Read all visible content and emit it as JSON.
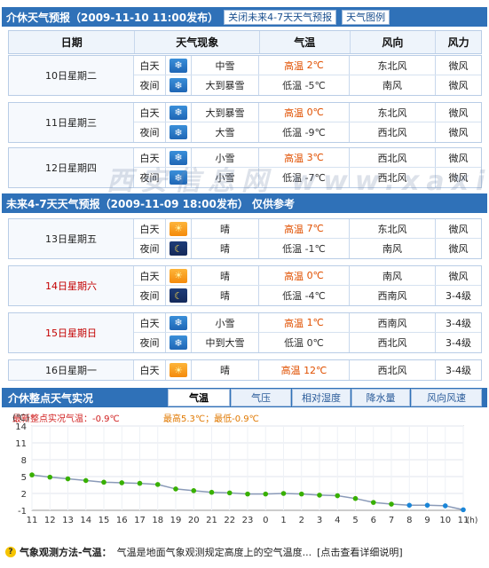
{
  "short_term": {
    "title": "介休天气预报（2009-11-10 11:00发布）",
    "btn_close": "关闭未来4-7天天气预报",
    "btn_legend": "天气图例"
  },
  "headers": {
    "date": "日期",
    "phen": "天气现象",
    "temp": "气温",
    "wind_dir": "风向",
    "wind_force": "风力"
  },
  "days_short": [
    {
      "date": "10日星期二",
      "rows": [
        {
          "period": "白天",
          "icon": "snow-icon",
          "phen": "中雪",
          "temp_label": "高温",
          "temp": "2℃",
          "wind_dir": "东北风",
          "wind_force": "微风"
        },
        {
          "period": "夜间",
          "icon": "snow-icon",
          "phen": "大到暴雪",
          "temp_label": "低温",
          "temp": "-5℃",
          "wind_dir": "南风",
          "wind_force": "微风"
        }
      ]
    },
    {
      "date": "11日星期三",
      "rows": [
        {
          "period": "白天",
          "icon": "snow-icon",
          "phen": "大到暴雪",
          "temp_label": "高温",
          "temp": "0℃",
          "wind_dir": "东北风",
          "wind_force": "微风"
        },
        {
          "period": "夜间",
          "icon": "snow-icon",
          "phen": "大雪",
          "temp_label": "低温",
          "temp": "-9℃",
          "wind_dir": "西北风",
          "wind_force": "微风"
        }
      ]
    },
    {
      "date": "12日星期四",
      "rows": [
        {
          "period": "白天",
          "icon": "snow-icon",
          "phen": "小雪",
          "temp_label": "高温",
          "temp": "3℃",
          "wind_dir": "西北风",
          "wind_force": "微风"
        },
        {
          "period": "夜间",
          "icon": "snow-icon",
          "phen": "小雪",
          "temp_label": "低温",
          "temp": "-7℃",
          "wind_dir": "西北风",
          "wind_force": "微风"
        }
      ]
    }
  ],
  "long_term": {
    "title": "未来4-7天天气预报（2009-11-09 18:00发布）  仅供参考"
  },
  "days_long": [
    {
      "date": "13日星期五",
      "red": false,
      "rows": [
        {
          "period": "白天",
          "icon": "sun-icon",
          "phen": "晴",
          "temp_label": "高温",
          "temp": "7℃",
          "wind_dir": "东北风",
          "wind_force": "微风"
        },
        {
          "period": "夜间",
          "icon": "moon-icon",
          "phen": "晴",
          "temp_label": "低温",
          "temp": "-1℃",
          "wind_dir": "南风",
          "wind_force": "微风"
        }
      ]
    },
    {
      "date": "14日星期六",
      "red": true,
      "rows": [
        {
          "period": "白天",
          "icon": "sun-icon",
          "phen": "晴",
          "temp_label": "高温",
          "temp": "0℃",
          "wind_dir": "南风",
          "wind_force": "微风"
        },
        {
          "period": "夜间",
          "icon": "moon-icon",
          "phen": "晴",
          "temp_label": "低温",
          "temp": "-4℃",
          "wind_dir": "西南风",
          "wind_force": "3-4级"
        }
      ]
    },
    {
      "date": "15日星期日",
      "red": true,
      "rows": [
        {
          "period": "白天",
          "icon": "snow-icon",
          "phen": "小雪",
          "temp_label": "高温",
          "temp": "1℃",
          "wind_dir": "西南风",
          "wind_force": "3-4级"
        },
        {
          "period": "夜间",
          "icon": "snow-icon",
          "phen": "中到大雪",
          "temp_label": "低温",
          "temp": "0℃",
          "wind_dir": "西北风",
          "wind_force": "3-4级"
        }
      ]
    },
    {
      "date": "16日星期一",
      "red": false,
      "rows": [
        {
          "period": "白天",
          "icon": "sun-icon",
          "phen": "晴",
          "temp_label": "高温",
          "temp": "12℃",
          "wind_dir": "西北风",
          "wind_force": "3-4级"
        }
      ]
    }
  ],
  "watermark": "西安信息网 www.xaxinge.com",
  "hourly": {
    "title": "介休整点天气实况",
    "tabs": [
      "气温",
      "气压",
      "相对湿度",
      "降水量",
      "风向风速"
    ],
    "unit": "(℃)",
    "latest_label": "最新整点实况气温：-0.9℃",
    "range_label": "最高5.3℃；最低-0.9℃"
  },
  "chart_data": {
    "type": "line",
    "x": [
      "11",
      "12",
      "13",
      "14",
      "15",
      "16",
      "17",
      "18",
      "19",
      "20",
      "21",
      "22",
      "23",
      "0",
      "1",
      "2",
      "3",
      "4",
      "5",
      "6",
      "7",
      "8",
      "9",
      "10",
      "11"
    ],
    "x_unit": "(h)",
    "series": [
      {
        "values": [
          5.3,
          4.9,
          4.6,
          4.3,
          4.0,
          3.9,
          3.8,
          3.6,
          2.8,
          2.5,
          2.2,
          2.1,
          1.9,
          1.9,
          2.0,
          1.9,
          1.7,
          1.6,
          1.1,
          0.4,
          0.1,
          -0.1,
          -0.1,
          -0.2,
          -0.9
        ]
      }
    ],
    "ylim": [
      -1,
      14
    ],
    "yticks": [
      14,
      11,
      8,
      5,
      2,
      -1
    ],
    "grid": true,
    "line_color": "#8a9ab8",
    "point_colors": [
      "#38b000",
      "#1a86d8"
    ]
  },
  "footer": {
    "label": "气象观测方法-气温：",
    "text": "气温是地面气象观测规定高度上的空气温度...",
    "link": "[点击查看详细说明]"
  }
}
